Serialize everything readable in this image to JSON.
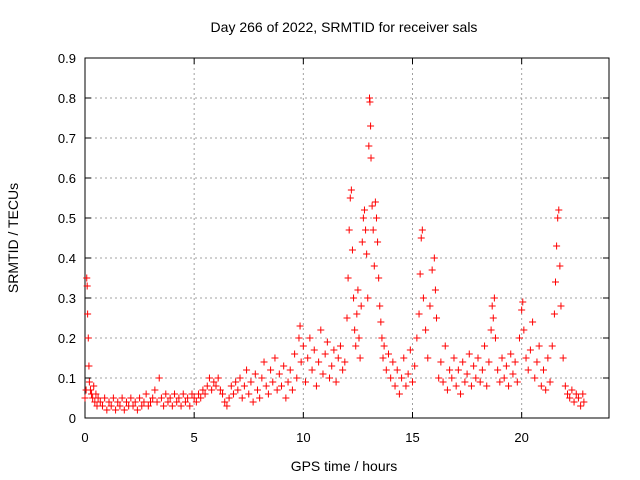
{
  "chart_data": {
    "type": "scatter",
    "title": "Day 266 of 2022, SRMTID for receiver sals",
    "xlabel": "GPS time / hours",
    "ylabel": "SRMTID / TECUs",
    "xlim": [
      0,
      24
    ],
    "ylim": [
      0,
      0.9
    ],
    "x_ticks": [
      "0",
      "5",
      "10",
      "15",
      "20"
    ],
    "y_ticks": [
      "0",
      "0.1",
      "0.2",
      "0.3",
      "0.4",
      "0.5",
      "0.6",
      "0.7",
      "0.8",
      "0.9"
    ],
    "x_tick_values": [
      0,
      5,
      10,
      15,
      20
    ],
    "y_tick_values": [
      0,
      0.1,
      0.2,
      0.3,
      0.4,
      0.5,
      0.6,
      0.7,
      0.8,
      0.9
    ],
    "grid": true,
    "marker": "+",
    "color": "#ff0000",
    "series": [
      {
        "name": "SRMTID",
        "points": [
          [
            0.0,
            0.05
          ],
          [
            0.05,
            0.07
          ],
          [
            0.08,
            0.35
          ],
          [
            0.1,
            0.33
          ],
          [
            0.12,
            0.26
          ],
          [
            0.15,
            0.2
          ],
          [
            0.18,
            0.13
          ],
          [
            0.2,
            0.09
          ],
          [
            0.25,
            0.07
          ],
          [
            0.3,
            0.06
          ],
          [
            0.35,
            0.05
          ],
          [
            0.4,
            0.08
          ],
          [
            0.45,
            0.04
          ],
          [
            0.5,
            0.06
          ],
          [
            0.55,
            0.03
          ],
          [
            0.6,
            0.05
          ],
          [
            0.7,
            0.04
          ],
          [
            0.8,
            0.03
          ],
          [
            0.9,
            0.05
          ],
          [
            1.0,
            0.02
          ],
          [
            1.1,
            0.04
          ],
          [
            1.2,
            0.03
          ],
          [
            1.3,
            0.05
          ],
          [
            1.4,
            0.02
          ],
          [
            1.5,
            0.04
          ],
          [
            1.6,
            0.03
          ],
          [
            1.7,
            0.05
          ],
          [
            1.8,
            0.02
          ],
          [
            1.9,
            0.04
          ],
          [
            2.0,
            0.03
          ],
          [
            2.1,
            0.05
          ],
          [
            2.2,
            0.03
          ],
          [
            2.3,
            0.04
          ],
          [
            2.4,
            0.02
          ],
          [
            2.5,
            0.05
          ],
          [
            2.6,
            0.03
          ],
          [
            2.7,
            0.04
          ],
          [
            2.8,
            0.06
          ],
          [
            2.9,
            0.03
          ],
          [
            3.0,
            0.04
          ],
          [
            3.1,
            0.05
          ],
          [
            3.2,
            0.07
          ],
          [
            3.3,
            0.04
          ],
          [
            3.4,
            0.1
          ],
          [
            3.5,
            0.05
          ],
          [
            3.6,
            0.03
          ],
          [
            3.7,
            0.06
          ],
          [
            3.8,
            0.04
          ],
          [
            3.9,
            0.05
          ],
          [
            4.0,
            0.03
          ],
          [
            4.1,
            0.06
          ],
          [
            4.2,
            0.04
          ],
          [
            4.3,
            0.05
          ],
          [
            4.4,
            0.03
          ],
          [
            4.5,
            0.06
          ],
          [
            4.6,
            0.04
          ],
          [
            4.7,
            0.05
          ],
          [
            4.8,
            0.03
          ],
          [
            4.9,
            0.06
          ],
          [
            5.0,
            0.05
          ],
          [
            5.1,
            0.04
          ],
          [
            5.2,
            0.06
          ],
          [
            5.3,
            0.05
          ],
          [
            5.4,
            0.07
          ],
          [
            5.5,
            0.06
          ],
          [
            5.6,
            0.08
          ],
          [
            5.7,
            0.1
          ],
          [
            5.8,
            0.07
          ],
          [
            5.9,
            0.09
          ],
          [
            6.0,
            0.08
          ],
          [
            6.1,
            0.1
          ],
          [
            6.2,
            0.07
          ],
          [
            6.3,
            0.06
          ],
          [
            6.4,
            0.04
          ],
          [
            6.5,
            0.03
          ],
          [
            6.6,
            0.05
          ],
          [
            6.7,
            0.08
          ],
          [
            6.8,
            0.06
          ],
          [
            6.9,
            0.09
          ],
          [
            7.0,
            0.07
          ],
          [
            7.1,
            0.1
          ],
          [
            7.2,
            0.05
          ],
          [
            7.3,
            0.08
          ],
          [
            7.4,
            0.12
          ],
          [
            7.5,
            0.06
          ],
          [
            7.6,
            0.09
          ],
          [
            7.7,
            0.04
          ],
          [
            7.8,
            0.11
          ],
          [
            7.9,
            0.07
          ],
          [
            8.0,
            0.05
          ],
          [
            8.1,
            0.1
          ],
          [
            8.2,
            0.14
          ],
          [
            8.3,
            0.08
          ],
          [
            8.4,
            0.06
          ],
          [
            8.5,
            0.12
          ],
          [
            8.6,
            0.09
          ],
          [
            8.7,
            0.15
          ],
          [
            8.8,
            0.07
          ],
          [
            8.9,
            0.11
          ],
          [
            9.0,
            0.08
          ],
          [
            9.1,
            0.13
          ],
          [
            9.2,
            0.05
          ],
          [
            9.3,
            0.09
          ],
          [
            9.4,
            0.12
          ],
          [
            9.5,
            0.07
          ],
          [
            9.6,
            0.16
          ],
          [
            9.7,
            0.1
          ],
          [
            9.8,
            0.2
          ],
          [
            9.85,
            0.23
          ],
          [
            9.9,
            0.14
          ],
          [
            10.0,
            0.18
          ],
          [
            10.1,
            0.09
          ],
          [
            10.2,
            0.15
          ],
          [
            10.3,
            0.2
          ],
          [
            10.4,
            0.12
          ],
          [
            10.5,
            0.17
          ],
          [
            10.6,
            0.08
          ],
          [
            10.7,
            0.14
          ],
          [
            10.8,
            0.22
          ],
          [
            10.9,
            0.11
          ],
          [
            11.0,
            0.16
          ],
          [
            11.1,
            0.19
          ],
          [
            11.2,
            0.1
          ],
          [
            11.3,
            0.13
          ],
          [
            11.4,
            0.17
          ],
          [
            11.5,
            0.09
          ],
          [
            11.6,
            0.15
          ],
          [
            11.7,
            0.18
          ],
          [
            11.8,
            0.12
          ],
          [
            11.9,
            0.14
          ],
          [
            12.0,
            0.25
          ],
          [
            12.05,
            0.35
          ],
          [
            12.1,
            0.47
          ],
          [
            12.15,
            0.55
          ],
          [
            12.2,
            0.57
          ],
          [
            12.25,
            0.42
          ],
          [
            12.3,
            0.3
          ],
          [
            12.35,
            0.22
          ],
          [
            12.4,
            0.18
          ],
          [
            12.45,
            0.26
          ],
          [
            12.5,
            0.32
          ],
          [
            12.55,
            0.2
          ],
          [
            12.6,
            0.15
          ],
          [
            12.65,
            0.28
          ],
          [
            12.7,
            0.44
          ],
          [
            12.75,
            0.5
          ],
          [
            12.8,
            0.52
          ],
          [
            12.85,
            0.47
          ],
          [
            12.9,
            0.41
          ],
          [
            12.95,
            0.3
          ],
          [
            13.0,
            0.68
          ],
          [
            13.03,
            0.8
          ],
          [
            13.05,
            0.79
          ],
          [
            13.08,
            0.73
          ],
          [
            13.1,
            0.65
          ],
          [
            13.15,
            0.53
          ],
          [
            13.2,
            0.47
          ],
          [
            13.25,
            0.38
          ],
          [
            13.3,
            0.54
          ],
          [
            13.35,
            0.5
          ],
          [
            13.4,
            0.44
          ],
          [
            13.45,
            0.35
          ],
          [
            13.5,
            0.28
          ],
          [
            13.55,
            0.24
          ],
          [
            13.6,
            0.2
          ],
          [
            13.65,
            0.15
          ],
          [
            13.7,
            0.18
          ],
          [
            13.8,
            0.12
          ],
          [
            13.9,
            0.16
          ],
          [
            14.0,
            0.1
          ],
          [
            14.1,
            0.14
          ],
          [
            14.2,
            0.08
          ],
          [
            14.3,
            0.12
          ],
          [
            14.4,
            0.06
          ],
          [
            14.5,
            0.1
          ],
          [
            14.6,
            0.15
          ],
          [
            14.7,
            0.08
          ],
          [
            14.8,
            0.11
          ],
          [
            14.9,
            0.17
          ],
          [
            15.0,
            0.09
          ],
          [
            15.1,
            0.13
          ],
          [
            15.2,
            0.2
          ],
          [
            15.3,
            0.26
          ],
          [
            15.35,
            0.36
          ],
          [
            15.4,
            0.45
          ],
          [
            15.45,
            0.47
          ],
          [
            15.5,
            0.3
          ],
          [
            15.6,
            0.22
          ],
          [
            15.7,
            0.15
          ],
          [
            15.8,
            0.28
          ],
          [
            15.9,
            0.37
          ],
          [
            16.0,
            0.4
          ],
          [
            16.05,
            0.32
          ],
          [
            16.1,
            0.25
          ],
          [
            16.2,
            0.1
          ],
          [
            16.3,
            0.14
          ],
          [
            16.4,
            0.09
          ],
          [
            16.5,
            0.18
          ],
          [
            16.6,
            0.07
          ],
          [
            16.7,
            0.12
          ],
          [
            16.8,
            0.1
          ],
          [
            16.9,
            0.15
          ],
          [
            17.0,
            0.08
          ],
          [
            17.1,
            0.12
          ],
          [
            17.2,
            0.06
          ],
          [
            17.3,
            0.14
          ],
          [
            17.4,
            0.09
          ],
          [
            17.5,
            0.11
          ],
          [
            17.6,
            0.16
          ],
          [
            17.7,
            0.08
          ],
          [
            17.8,
            0.13
          ],
          [
            17.9,
            0.1
          ],
          [
            18.0,
            0.15
          ],
          [
            18.1,
            0.09
          ],
          [
            18.2,
            0.12
          ],
          [
            18.3,
            0.18
          ],
          [
            18.4,
            0.08
          ],
          [
            18.5,
            0.14
          ],
          [
            18.6,
            0.22
          ],
          [
            18.65,
            0.28
          ],
          [
            18.7,
            0.25
          ],
          [
            18.75,
            0.3
          ],
          [
            18.8,
            0.2
          ],
          [
            18.9,
            0.12
          ],
          [
            19.0,
            0.09
          ],
          [
            19.1,
            0.15
          ],
          [
            19.2,
            0.1
          ],
          [
            19.3,
            0.13
          ],
          [
            19.4,
            0.08
          ],
          [
            19.5,
            0.16
          ],
          [
            19.6,
            0.11
          ],
          [
            19.7,
            0.14
          ],
          [
            19.8,
            0.09
          ],
          [
            19.9,
            0.2
          ],
          [
            20.0,
            0.27
          ],
          [
            20.05,
            0.29
          ],
          [
            20.1,
            0.22
          ],
          [
            20.2,
            0.15
          ],
          [
            20.3,
            0.12
          ],
          [
            20.4,
            0.17
          ],
          [
            20.5,
            0.24
          ],
          [
            20.6,
            0.1
          ],
          [
            20.7,
            0.14
          ],
          [
            20.8,
            0.18
          ],
          [
            20.9,
            0.08
          ],
          [
            21.0,
            0.12
          ],
          [
            21.1,
            0.07
          ],
          [
            21.2,
            0.15
          ],
          [
            21.3,
            0.09
          ],
          [
            21.4,
            0.18
          ],
          [
            21.5,
            0.26
          ],
          [
            21.55,
            0.34
          ],
          [
            21.6,
            0.43
          ],
          [
            21.65,
            0.5
          ],
          [
            21.7,
            0.52
          ],
          [
            21.75,
            0.38
          ],
          [
            21.8,
            0.28
          ],
          [
            21.9,
            0.15
          ],
          [
            22.0,
            0.08
          ],
          [
            22.1,
            0.06
          ],
          [
            22.2,
            0.05
          ],
          [
            22.3,
            0.07
          ],
          [
            22.4,
            0.04
          ],
          [
            22.5,
            0.06
          ],
          [
            22.6,
            0.05
          ],
          [
            22.7,
            0.03
          ],
          [
            22.8,
            0.06
          ],
          [
            22.85,
            0.04
          ]
        ]
      }
    ]
  }
}
